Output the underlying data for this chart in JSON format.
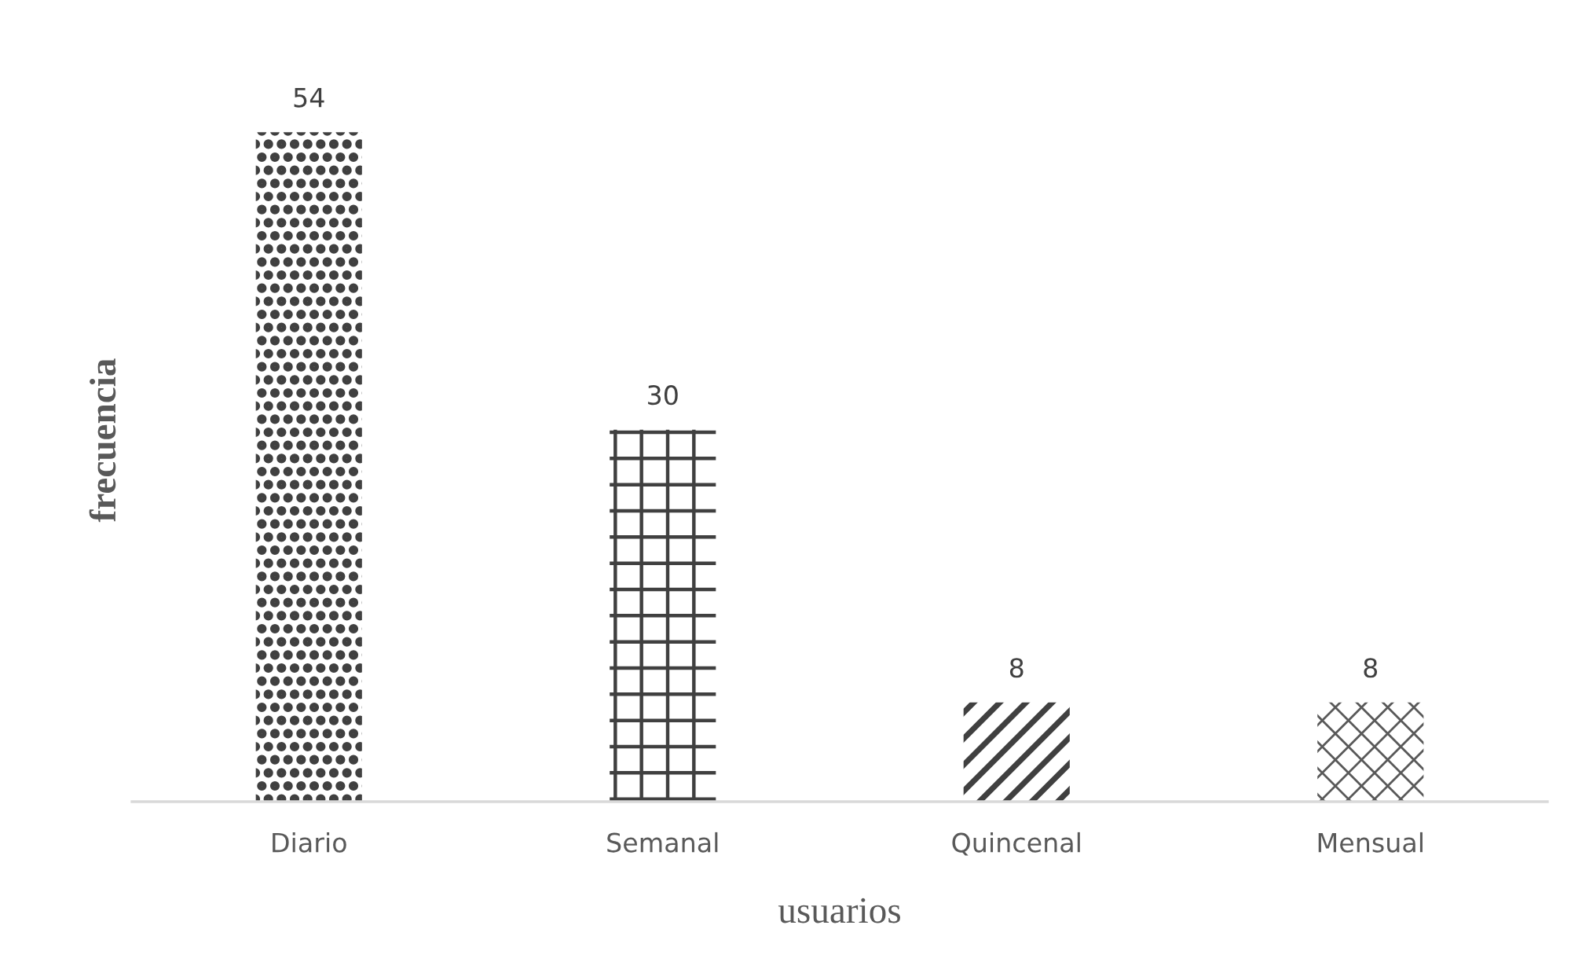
{
  "chart_data": {
    "type": "bar",
    "categories": [
      "Diario",
      "Semanal",
      "Quincenal",
      "Mensual"
    ],
    "values": [
      54,
      30,
      8,
      8
    ],
    "colors": [
      "#404040",
      "#404040",
      "#404040",
      "#595959"
    ],
    "xlabel": "usuarios",
    "ylabel": "frecuencia",
    "data_labels": true,
    "tick_labels": "x",
    "grid": false,
    "legend": false
  }
}
